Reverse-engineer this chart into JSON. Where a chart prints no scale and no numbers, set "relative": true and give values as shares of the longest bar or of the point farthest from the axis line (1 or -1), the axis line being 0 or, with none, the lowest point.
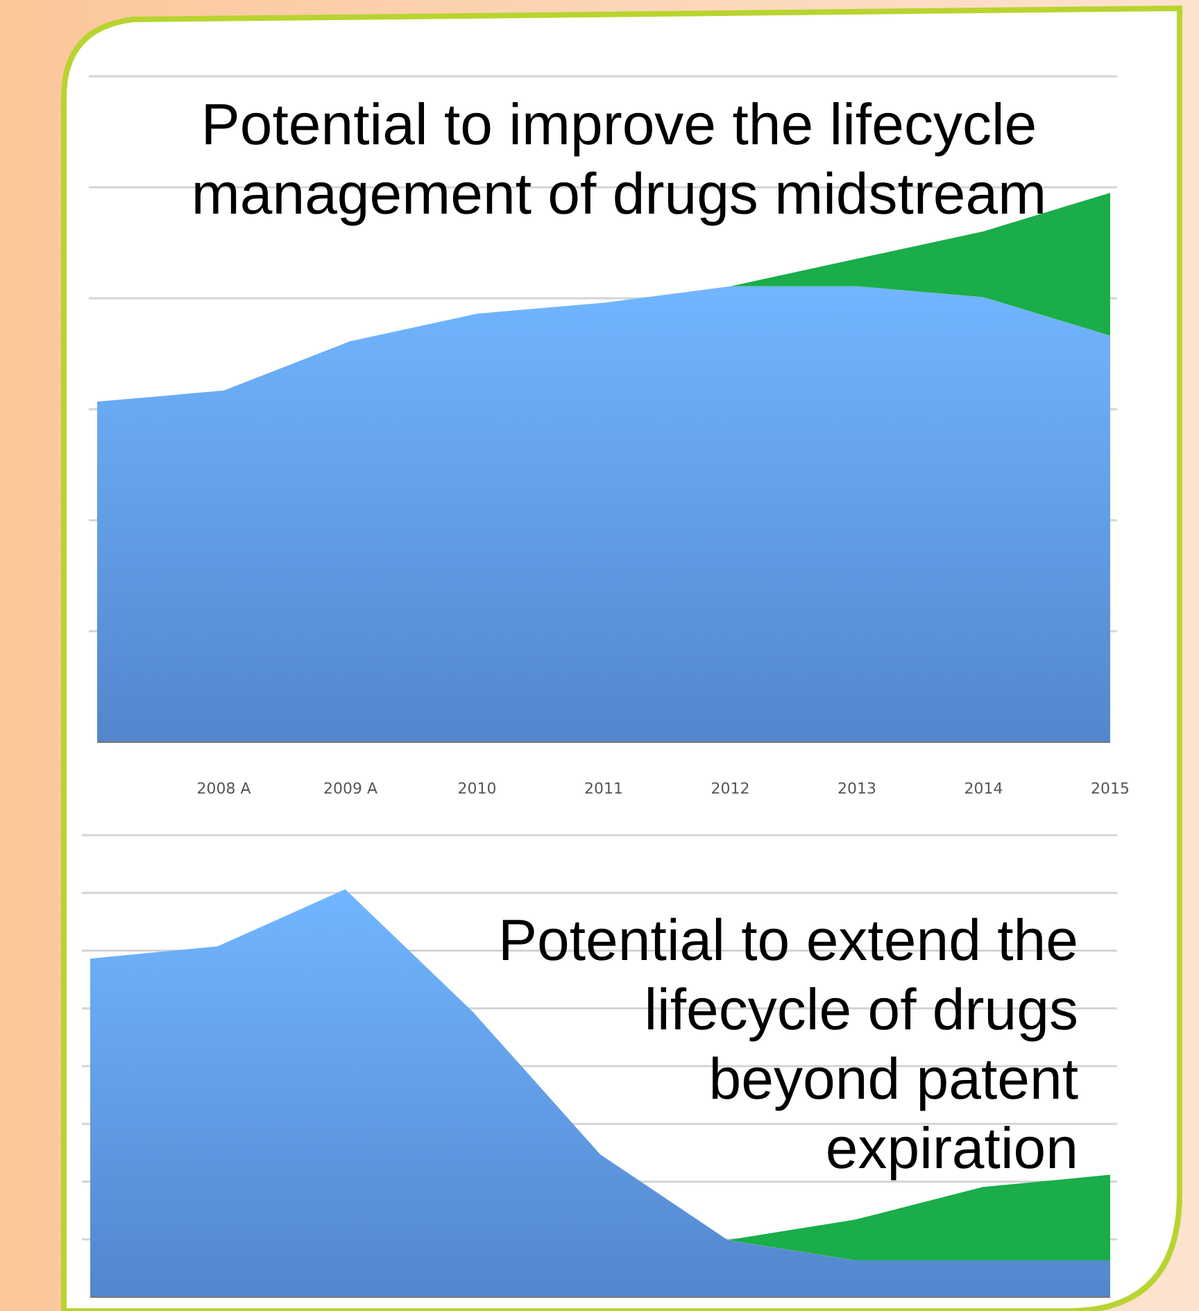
{
  "chart_data": [
    {
      "type": "area",
      "title": "Potential to improve the lifecycle management of drugs midstream",
      "categories": [
        null,
        "2008 A",
        "2009 A",
        "2010",
        "2011",
        "2012",
        "2013",
        "2014",
        "2015"
      ],
      "relative": true,
      "stacked": true,
      "grid": "y",
      "tick_labels": "x",
      "series": [
        {
          "color": "#5b93e0",
          "values": [
            0.62,
            0.64,
            0.73,
            0.78,
            0.8,
            0.83,
            0.83,
            0.81,
            0.74
          ]
        },
        {
          "color": "#1aad4a",
          "values": [
            0,
            0,
            0,
            0,
            0,
            0,
            0.05,
            0.12,
            0.26
          ]
        }
      ]
    },
    {
      "type": "area",
      "title": "Potential to extend the lifecycle of drugs beyond patent expiration",
      "categories": [
        null,
        null,
        null,
        null,
        null,
        null,
        null,
        null,
        null
      ],
      "relative": true,
      "stacked": true,
      "grid": "y",
      "tick_labels": false,
      "series": [
        {
          "color": "#5b93e0",
          "values": [
            0.83,
            0.86,
            1,
            0.7,
            0.35,
            0.14,
            0.09,
            0.09,
            0.09
          ]
        },
        {
          "color": "#1aad4a",
          "values": [
            null,
            null,
            null,
            null,
            null,
            0,
            0.1,
            0.18,
            0.21
          ]
        }
      ]
    }
  ]
}
